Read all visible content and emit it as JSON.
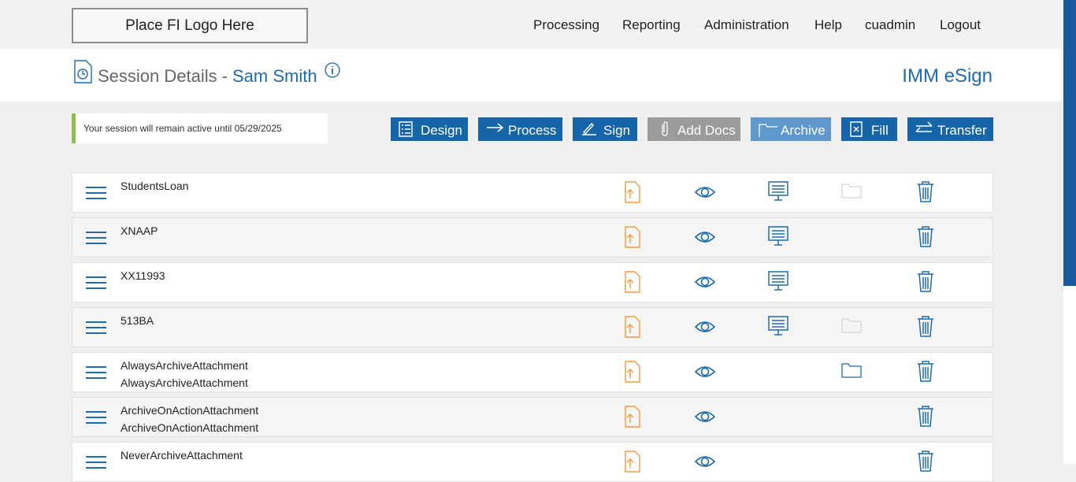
{
  "header": {
    "logo": "Place FI Logo Here",
    "nav": [
      "Processing",
      "Reporting",
      "Administration",
      "Help",
      "cuadmin",
      "Logout"
    ]
  },
  "page": {
    "title": "Session Details -",
    "client": "Sam Smith",
    "product": "IMM eSign"
  },
  "notice": "Your session will remain active until 05/29/2025",
  "toolbar": [
    "Design",
    "Process",
    "Sign",
    "Add Docs",
    "Archive",
    "Fill",
    "Transfer"
  ],
  "documents": [
    {
      "lines": [
        "StudentsLoan"
      ]
    },
    {
      "lines": [
        "XNAAP"
      ]
    },
    {
      "lines": [
        "XX11993"
      ]
    },
    {
      "lines": [
        "513BA"
      ]
    },
    {
      "lines": [
        "AlwaysArchiveAttachment",
        "AlwaysArchiveAttachment"
      ]
    },
    {
      "lines": [
        "ArchiveOnActionAttachment",
        "ArchiveOnActionAttachment"
      ]
    },
    {
      "lines": [
        "NeverArchiveAttachment"
      ]
    }
  ]
}
